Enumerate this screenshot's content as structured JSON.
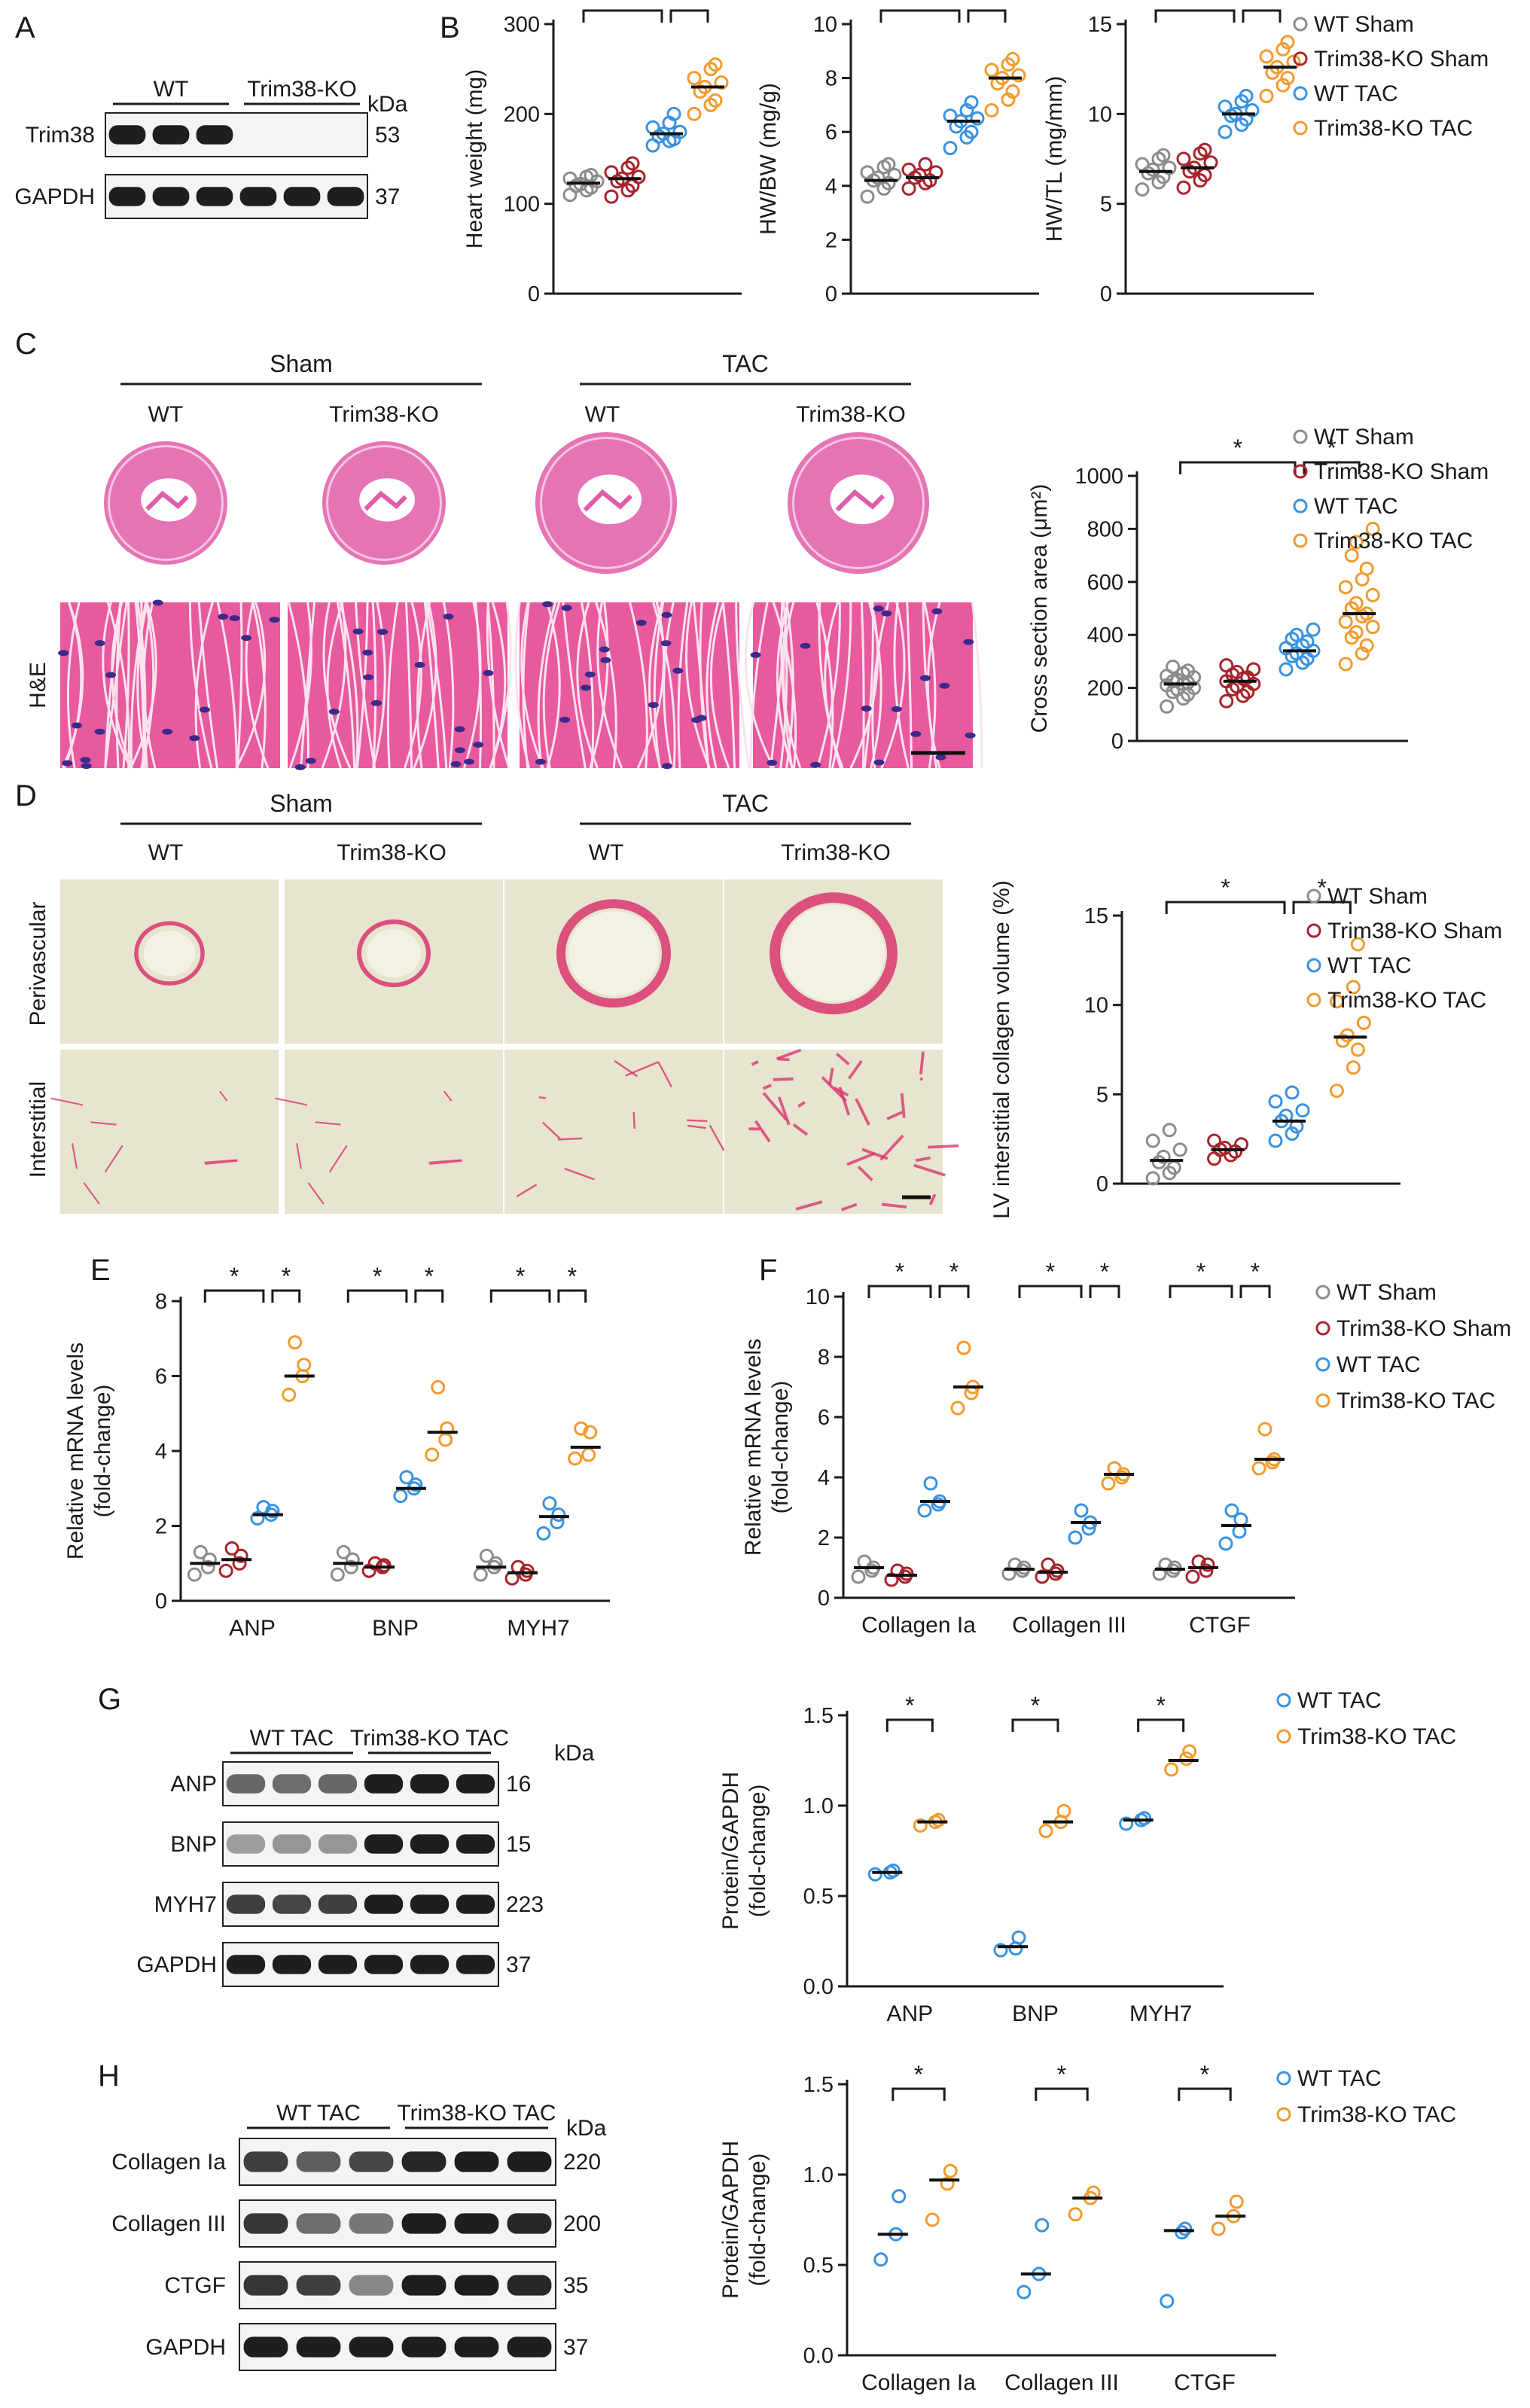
{
  "colors": {
    "wt_sham": "#8c8c8c",
    "ko_sham": "#a8242c",
    "wt_tac": "#3a92e0",
    "ko_tac": "#f29b2e",
    "he_pink": "#e05ca7",
    "he_bg": "#f2f2f2",
    "sirius_bg": "#e7e4cf",
    "sirius_red": "#d9366e",
    "blot_band": "#1e1e1e",
    "blot_bg": "#f4f4f4"
  },
  "panels": {
    "A": "A",
    "B": "B",
    "C": "C",
    "D": "D",
    "E": "E",
    "F": "F",
    "G": "G",
    "H": "H"
  },
  "blot_A": {
    "groups": [
      "WT",
      "Trim38-KO"
    ],
    "kda_label": "kDa",
    "rows": [
      {
        "label": "Trim38",
        "kda": "53",
        "lanes": [
          1,
          1,
          1,
          0,
          0,
          0
        ]
      },
      {
        "label": "GAPDH",
        "kda": "37",
        "lanes": [
          1,
          1,
          1,
          1,
          1,
          1
        ]
      }
    ]
  },
  "legend4": [
    "WT Sham",
    "Trim38-KO Sham",
    "WT TAC",
    "Trim38-KO TAC"
  ],
  "legend2": [
    "WT TAC",
    "Trim38-KO TAC"
  ],
  "sig": "*",
  "histology_C": {
    "groups": [
      "Sham",
      "TAC"
    ],
    "columns": [
      "WT",
      "Trim38-KO",
      "WT",
      "Trim38-KO"
    ],
    "row_label": "H&E"
  },
  "histology_D": {
    "groups": [
      "Sham",
      "TAC"
    ],
    "columns": [
      "WT",
      "Trim38-KO",
      "WT",
      "Trim38-KO"
    ],
    "row_labels": [
      "Perivascular",
      "Interstitial"
    ]
  },
  "blot_G": {
    "groups": [
      "WT TAC",
      "Trim38-KO TAC"
    ],
    "kda_label": "kDa",
    "rows": [
      {
        "label": "ANP",
        "kda": "16",
        "lanes": [
          0.55,
          0.5,
          0.55,
          1,
          1,
          1
        ]
      },
      {
        "label": "BNP",
        "kda": "15",
        "lanes": [
          0.2,
          0.25,
          0.25,
          1,
          1,
          1
        ]
      },
      {
        "label": "MYH7",
        "kda": "223",
        "lanes": [
          0.8,
          0.75,
          0.8,
          1,
          1,
          1
        ]
      },
      {
        "label": "GAPDH",
        "kda": "37",
        "lanes": [
          1,
          1,
          1,
          1,
          1,
          1
        ]
      }
    ]
  },
  "blot_H": {
    "groups": [
      "WT TAC",
      "Trim38-KO TAC"
    ],
    "kda_label": "kDa",
    "rows": [
      {
        "label": "Collagen Ia",
        "kda": "220",
        "lanes": [
          0.8,
          0.6,
          0.75,
          0.95,
          1,
          1
        ]
      },
      {
        "label": "Collagen III",
        "kda": "200",
        "lanes": [
          0.85,
          0.5,
          0.45,
          1,
          1,
          0.95
        ]
      },
      {
        "label": "CTGF",
        "kda": "35",
        "lanes": [
          0.85,
          0.8,
          0.35,
          1,
          1,
          0.95
        ]
      },
      {
        "label": "GAPDH",
        "kda": "37",
        "lanes": [
          1,
          1,
          1,
          1,
          1,
          1
        ]
      }
    ]
  },
  "chart_data": [
    {
      "id": "B1",
      "type": "scatter",
      "ylabel": "Heart weight (mg)",
      "ylim": [
        0,
        300
      ],
      "yticks": [
        0,
        100,
        200,
        300
      ],
      "groups": [
        {
          "values": [
            110,
            115,
            118,
            120,
            122,
            125,
            128,
            130,
            132
          ],
          "mean": 123
        },
        {
          "values": [
            108,
            115,
            120,
            125,
            128,
            130,
            135,
            140,
            145
          ],
          "mean": 128
        },
        {
          "values": [
            165,
            170,
            172,
            175,
            178,
            180,
            185,
            190,
            200
          ],
          "mean": 178
        },
        {
          "values": [
            200,
            210,
            215,
            225,
            230,
            235,
            240,
            250,
            255
          ],
          "mean": 230
        }
      ],
      "brackets": [
        [
          0,
          2
        ],
        [
          2,
          3
        ]
      ]
    },
    {
      "id": "B2",
      "type": "scatter",
      "ylabel": "HW/BW (mg/g)",
      "ylim": [
        0,
        10
      ],
      "yticks": [
        0,
        2,
        4,
        6,
        8,
        10
      ],
      "groups": [
        {
          "values": [
            3.6,
            3.9,
            4.1,
            4.2,
            4.3,
            4.4,
            4.5,
            4.7,
            4.8
          ],
          "mean": 4.2
        },
        {
          "values": [
            3.9,
            4.1,
            4.2,
            4.3,
            4.4,
            4.5,
            4.6,
            4.8
          ],
          "mean": 4.3
        },
        {
          "values": [
            5.4,
            5.8,
            6.0,
            6.2,
            6.4,
            6.5,
            6.6,
            6.8,
            7.1
          ],
          "mean": 6.4
        },
        {
          "values": [
            6.8,
            7.2,
            7.5,
            7.8,
            8.0,
            8.1,
            8.3,
            8.5,
            8.7
          ],
          "mean": 8.0
        }
      ],
      "brackets": [
        [
          0,
          2
        ],
        [
          2,
          3
        ]
      ]
    },
    {
      "id": "B3",
      "type": "scatter",
      "ylabel": "HW/TL (mg/mm)",
      "ylim": [
        0,
        15
      ],
      "yticks": [
        0,
        5,
        10,
        15
      ],
      "groups": [
        {
          "values": [
            5.8,
            6.2,
            6.5,
            6.7,
            6.9,
            7.0,
            7.2,
            7.5,
            7.7
          ],
          "mean": 6.8
        },
        {
          "values": [
            5.9,
            6.3,
            6.6,
            6.8,
            7.0,
            7.3,
            7.5,
            7.8,
            8.0
          ],
          "mean": 7.0
        },
        {
          "values": [
            9.0,
            9.4,
            9.7,
            9.9,
            10.0,
            10.2,
            10.4,
            10.7,
            11.0
          ],
          "mean": 10.0
        },
        {
          "values": [
            11.0,
            11.6,
            12.0,
            12.3,
            12.6,
            12.9,
            13.2,
            13.6,
            14.0
          ],
          "mean": 12.6
        }
      ],
      "brackets": [
        [
          0,
          2
        ],
        [
          2,
          3
        ]
      ]
    },
    {
      "id": "C",
      "type": "scatter",
      "ylabel": "Cross section area (μm²)",
      "ylim": [
        0,
        1000
      ],
      "yticks": [
        0,
        200,
        400,
        600,
        800,
        1000
      ],
      "groups": [
        {
          "values": [
            130,
            160,
            175,
            185,
            195,
            200,
            210,
            215,
            220,
            225,
            230,
            240,
            245,
            255,
            265,
            280
          ],
          "mean": 215
        },
        {
          "values": [
            150,
            170,
            185,
            195,
            205,
            215,
            225,
            235,
            240,
            250,
            260,
            270,
            285
          ],
          "mean": 225
        },
        {
          "values": [
            270,
            295,
            310,
            320,
            330,
            340,
            350,
            360,
            375,
            385,
            400,
            420
          ],
          "mean": 340
        },
        {
          "values": [
            290,
            330,
            360,
            390,
            410,
            430,
            450,
            470,
            480,
            500,
            520,
            550,
            580,
            610,
            650,
            700,
            750,
            800
          ],
          "mean": 480
        }
      ],
      "brackets": [
        [
          0,
          2
        ],
        [
          2,
          3
        ]
      ]
    },
    {
      "id": "D",
      "type": "scatter",
      "ylabel": "LV interstitial collagen volume (%)",
      "ylim": [
        0,
        15
      ],
      "yticks": [
        0,
        5,
        10,
        15
      ],
      "groups": [
        {
          "values": [
            0.3,
            0.6,
            0.9,
            1.2,
            1.5,
            1.9,
            2.4,
            3.0
          ],
          "mean": 1.3
        },
        {
          "values": [
            1.4,
            1.6,
            1.8,
            1.9,
            2.0,
            2.2,
            2.4
          ],
          "mean": 1.9
        },
        {
          "values": [
            2.4,
            2.8,
            3.2,
            3.5,
            3.8,
            4.1,
            4.6,
            5.1
          ],
          "mean": 3.5
        },
        {
          "values": [
            5.2,
            6.5,
            7.5,
            8.0,
            8.3,
            9.0,
            10.2,
            11.0,
            13.4
          ],
          "mean": 8.2
        }
      ],
      "brackets": [
        [
          0,
          2
        ],
        [
          2,
          3
        ]
      ]
    },
    {
      "id": "E",
      "type": "scatter",
      "ylabel": "Relative mRNA levels (fold-change)",
      "ylim": [
        0,
        8
      ],
      "yticks": [
        0,
        2,
        4,
        6,
        8
      ],
      "categories": [
        "ANP",
        "BNP",
        "MYH7"
      ],
      "clusters": [
        [
          {
            "values": [
              0.7,
              0.9,
              1.1,
              1.3
            ],
            "mean": 1.0
          },
          {
            "values": [
              0.8,
              1.0,
              1.2,
              1.4
            ],
            "mean": 1.1
          },
          {
            "values": [
              2.2,
              2.3,
              2.4,
              2.5
            ],
            "mean": 2.3
          },
          {
            "values": [
              5.5,
              6.0,
              6.3,
              6.9
            ],
            "mean": 6.0
          }
        ],
        [
          {
            "values": [
              0.7,
              0.9,
              1.1,
              1.3
            ],
            "mean": 1.0
          },
          {
            "values": [
              0.8,
              0.9,
              0.95,
              1.0
            ],
            "mean": 0.9
          },
          {
            "values": [
              2.8,
              3.0,
              3.1,
              3.3
            ],
            "mean": 3.0
          },
          {
            "values": [
              3.9,
              4.3,
              4.6,
              5.7
            ],
            "mean": 4.5
          }
        ],
        [
          {
            "values": [
              0.7,
              0.9,
              1.0,
              1.2
            ],
            "mean": 0.9
          },
          {
            "values": [
              0.6,
              0.7,
              0.8,
              0.9
            ],
            "mean": 0.75
          },
          {
            "values": [
              1.8,
              2.1,
              2.3,
              2.6
            ],
            "mean": 2.25
          },
          {
            "values": [
              3.8,
              3.9,
              4.5,
              4.6
            ],
            "mean": 4.1
          }
        ]
      ]
    },
    {
      "id": "F",
      "type": "scatter",
      "ylabel": "Relative mRNA levels (fold-change)",
      "ylim": [
        0,
        10
      ],
      "yticks": [
        0,
        2,
        4,
        6,
        8,
        10
      ],
      "categories": [
        "Collagen Ia",
        "Collagen III",
        "CTGF"
      ],
      "clusters": [
        [
          {
            "values": [
              0.7,
              0.9,
              1.0,
              1.2
            ],
            "mean": 1.0
          },
          {
            "values": [
              0.6,
              0.7,
              0.8,
              0.9
            ],
            "mean": 0.75
          },
          {
            "values": [
              2.9,
              3.1,
              3.2,
              3.8
            ],
            "mean": 3.2
          },
          {
            "values": [
              6.3,
              6.8,
              7.0,
              8.3
            ],
            "mean": 7.0
          }
        ],
        [
          {
            "values": [
              0.8,
              0.9,
              1.0,
              1.1
            ],
            "mean": 0.95
          },
          {
            "values": [
              0.7,
              0.8,
              0.9,
              1.1
            ],
            "mean": 0.85
          },
          {
            "values": [
              2.0,
              2.3,
              2.5,
              2.9
            ],
            "mean": 2.5
          },
          {
            "values": [
              3.8,
              4.0,
              4.1,
              4.3
            ],
            "mean": 4.1
          }
        ],
        [
          {
            "values": [
              0.8,
              0.9,
              1.0,
              1.1
            ],
            "mean": 0.95
          },
          {
            "values": [
              0.7,
              0.9,
              1.1,
              1.2
            ],
            "mean": 1.0
          },
          {
            "values": [
              1.8,
              2.2,
              2.6,
              2.9
            ],
            "mean": 2.4
          },
          {
            "values": [
              4.3,
              4.5,
              4.6,
              5.6
            ],
            "mean": 4.6
          }
        ]
      ]
    },
    {
      "id": "G",
      "type": "scatter",
      "ylabel": "Protein/GAPDH (fold-change)",
      "ylim": [
        0,
        1.5
      ],
      "yticks": [
        0.0,
        0.5,
        1.0,
        1.5
      ],
      "tickDecimals": 1,
      "categories": [
        "ANP",
        "BNP",
        "MYH7"
      ],
      "clusters": [
        [
          {
            "values": [
              0.62,
              0.63,
              0.64
            ],
            "mean": 0.63
          },
          {
            "values": [
              0.89,
              0.91,
              0.92
            ],
            "mean": 0.91
          }
        ],
        [
          {
            "values": [
              0.2,
              0.21,
              0.27
            ],
            "mean": 0.22
          },
          {
            "values": [
              0.86,
              0.91,
              0.97
            ],
            "mean": 0.91
          }
        ],
        [
          {
            "values": [
              0.9,
              0.92,
              0.93
            ],
            "mean": 0.92
          },
          {
            "values": [
              1.2,
              1.26,
              1.3
            ],
            "mean": 1.25
          }
        ]
      ]
    },
    {
      "id": "H",
      "type": "scatter",
      "ylabel": "Protein/GAPDH (fold-change)",
      "ylim": [
        0,
        1.5
      ],
      "yticks": [
        0.0,
        0.5,
        1.0,
        1.5
      ],
      "tickDecimals": 1,
      "categories": [
        "Collagen Ia",
        "Collagen III",
        "CTGF"
      ],
      "clusters": [
        [
          {
            "values": [
              0.53,
              0.67,
              0.88
            ],
            "mean": 0.67
          },
          {
            "values": [
              0.75,
              0.95,
              1.02
            ],
            "mean": 0.97
          }
        ],
        [
          {
            "values": [
              0.35,
              0.45,
              0.72
            ],
            "mean": 0.45
          },
          {
            "values": [
              0.78,
              0.87,
              0.9
            ],
            "mean": 0.87
          }
        ],
        [
          {
            "values": [
              0.3,
              0.68,
              0.7
            ],
            "mean": 0.69
          },
          {
            "values": [
              0.7,
              0.77,
              0.85
            ],
            "mean": 0.77
          }
        ]
      ]
    }
  ]
}
